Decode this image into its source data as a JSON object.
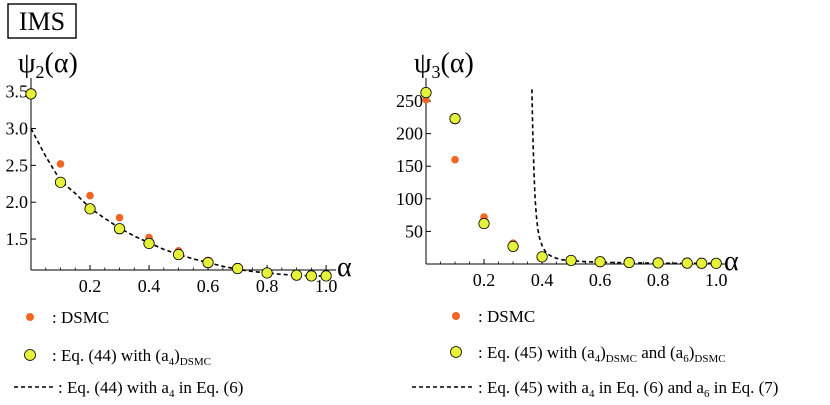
{
  "badge": "IMS",
  "legend": {
    "dsmc": ": DSMC",
    "left_eq_pre": ": Eq. (44) with (a",
    "left_eq_sub4": "4",
    "left_eq_post": ")",
    "left_eq_subDSMC": "DSMC",
    "left_line_pre": ": Eq. (44) with a",
    "left_line_sub4": "4",
    "left_line_post": " in Eq. (6)",
    "right_eq_pre": ": Eq. (45) with (a",
    "right_eq_sub4": "4",
    "right_eq_mid1": ")",
    "right_eq_subDSMC1": "DSMC",
    "right_eq_and": " and (a",
    "right_eq_sub6": "6",
    "right_eq_mid2": ")",
    "right_eq_subDSMC2": "DSMC",
    "right_line_pre": ": Eq. (45) with a",
    "right_line_sub4": "4",
    "right_line_mid": " in Eq. (6) and  a",
    "right_line_sub6": "6",
    "right_line_post": " in Eq. (7)"
  },
  "chart_data": [
    {
      "type": "scatter",
      "title": "ψ2(α)",
      "ylabel_sym": "ψ",
      "ylabel_sub": "2",
      "ylabel_arg": "(α)",
      "xlabel": "α",
      "xlim": [
        0,
        1.02
      ],
      "ylim": [
        1.08,
        3.55
      ],
      "xticks": [
        0.2,
        0.4,
        0.6,
        0.8,
        1.0
      ],
      "xtick_labels": [
        "0.2",
        "0.4",
        "0.6",
        "0.8",
        "1.0"
      ],
      "yticks": [
        1.5,
        2.0,
        2.5,
        3.0,
        3.5
      ],
      "ytick_labels": [
        "1.5",
        "2.0",
        "2.5",
        "3.0",
        "3.5"
      ],
      "series": [
        {
          "name": "DSMC",
          "color": "#f26522",
          "x": [
            0,
            0.1,
            0.2,
            0.3,
            0.4,
            0.5,
            0.6,
            0.7,
            0.8,
            0.9,
            0.95,
            1.0
          ],
          "y": [
            3.46,
            2.52,
            2.09,
            1.79,
            1.52,
            1.34,
            1.21,
            1.11,
            1.05,
            1.02,
            1.01,
            1.0
          ]
        },
        {
          "name": "Eq. (44) with (a4)DSMC",
          "color": "#e6f23a",
          "x": [
            0,
            0.1,
            0.2,
            0.3,
            0.4,
            0.5,
            0.6,
            0.7,
            0.8,
            0.9,
            0.95,
            1.0
          ],
          "y": [
            3.47,
            2.27,
            1.91,
            1.64,
            1.44,
            1.29,
            1.18,
            1.1,
            1.04,
            1.01,
            1.0,
            1.0
          ]
        },
        {
          "name": "Eq. (44) with a4 in Eq. (6)",
          "style": "dashed",
          "x": [
            0,
            0.05,
            0.1,
            0.15,
            0.2,
            0.25,
            0.3,
            0.35,
            0.4,
            0.45,
            0.5,
            0.55,
            0.6,
            0.65,
            0.7,
            0.75,
            0.8,
            0.85,
            0.9,
            0.95,
            1.0
          ],
          "y": [
            3.0,
            2.62,
            2.29,
            2.12,
            1.92,
            1.78,
            1.65,
            1.54,
            1.45,
            1.36,
            1.29,
            1.23,
            1.18,
            1.13,
            1.09,
            1.06,
            1.04,
            1.02,
            1.01,
            1.0,
            1.0
          ]
        }
      ]
    },
    {
      "type": "scatter",
      "title": "ψ3(α)",
      "ylabel_sym": "ψ",
      "ylabel_sub": "3",
      "ylabel_arg": "(α)",
      "xlabel": "α",
      "xlim": [
        0,
        1.02
      ],
      "ylim": [
        0,
        270
      ],
      "xticks": [
        0.2,
        0.4,
        0.6,
        0.8,
        1.0
      ],
      "xtick_labels": [
        "0.2",
        "0.4",
        "0.6",
        "0.8",
        "1.0"
      ],
      "yticks": [
        50,
        100,
        150,
        200,
        250
      ],
      "ytick_labels": [
        "50",
        "100",
        "150",
        "200",
        "250"
      ],
      "series": [
        {
          "name": "DSMC",
          "color": "#f26522",
          "x": [
            0,
            0.1,
            0.2,
            0.3,
            0.4,
            0.5,
            0.6,
            0.7,
            0.8,
            0.9,
            0.95,
            1.0
          ],
          "y": [
            252,
            160,
            72,
            32,
            13,
            7,
            4,
            2.5,
            1.8,
            1.3,
            1.1,
            1.0
          ]
        },
        {
          "name": "Eq. (45) with (a4)DSMC and (a6)DSMC",
          "color": "#e6f23a",
          "x": [
            0,
            0.1,
            0.2,
            0.3,
            0.4,
            0.5,
            0.6,
            0.7,
            0.8,
            0.9,
            0.95,
            1.0
          ],
          "y": [
            263,
            223,
            62,
            27,
            11,
            5.5,
            3.5,
            2.3,
            1.7,
            1.3,
            1.1,
            1.0
          ]
        },
        {
          "name": "Eq. (45) with a4 in Eq. (6) and a6 in Eq. (7)",
          "style": "dashed",
          "x": [
            0.365,
            0.368,
            0.372,
            0.376,
            0.38,
            0.385,
            0.39,
            0.4,
            0.41,
            0.42,
            0.44,
            0.47,
            0.5,
            0.55,
            0.6,
            0.7,
            0.8,
            0.9,
            1.0
          ],
          "y": [
            268,
            200,
            140,
            100,
            75,
            55,
            42,
            28,
            20,
            15,
            10,
            6.5,
            5,
            3.5,
            2.7,
            1.8,
            1.3,
            1.1,
            1.0
          ]
        }
      ]
    }
  ]
}
